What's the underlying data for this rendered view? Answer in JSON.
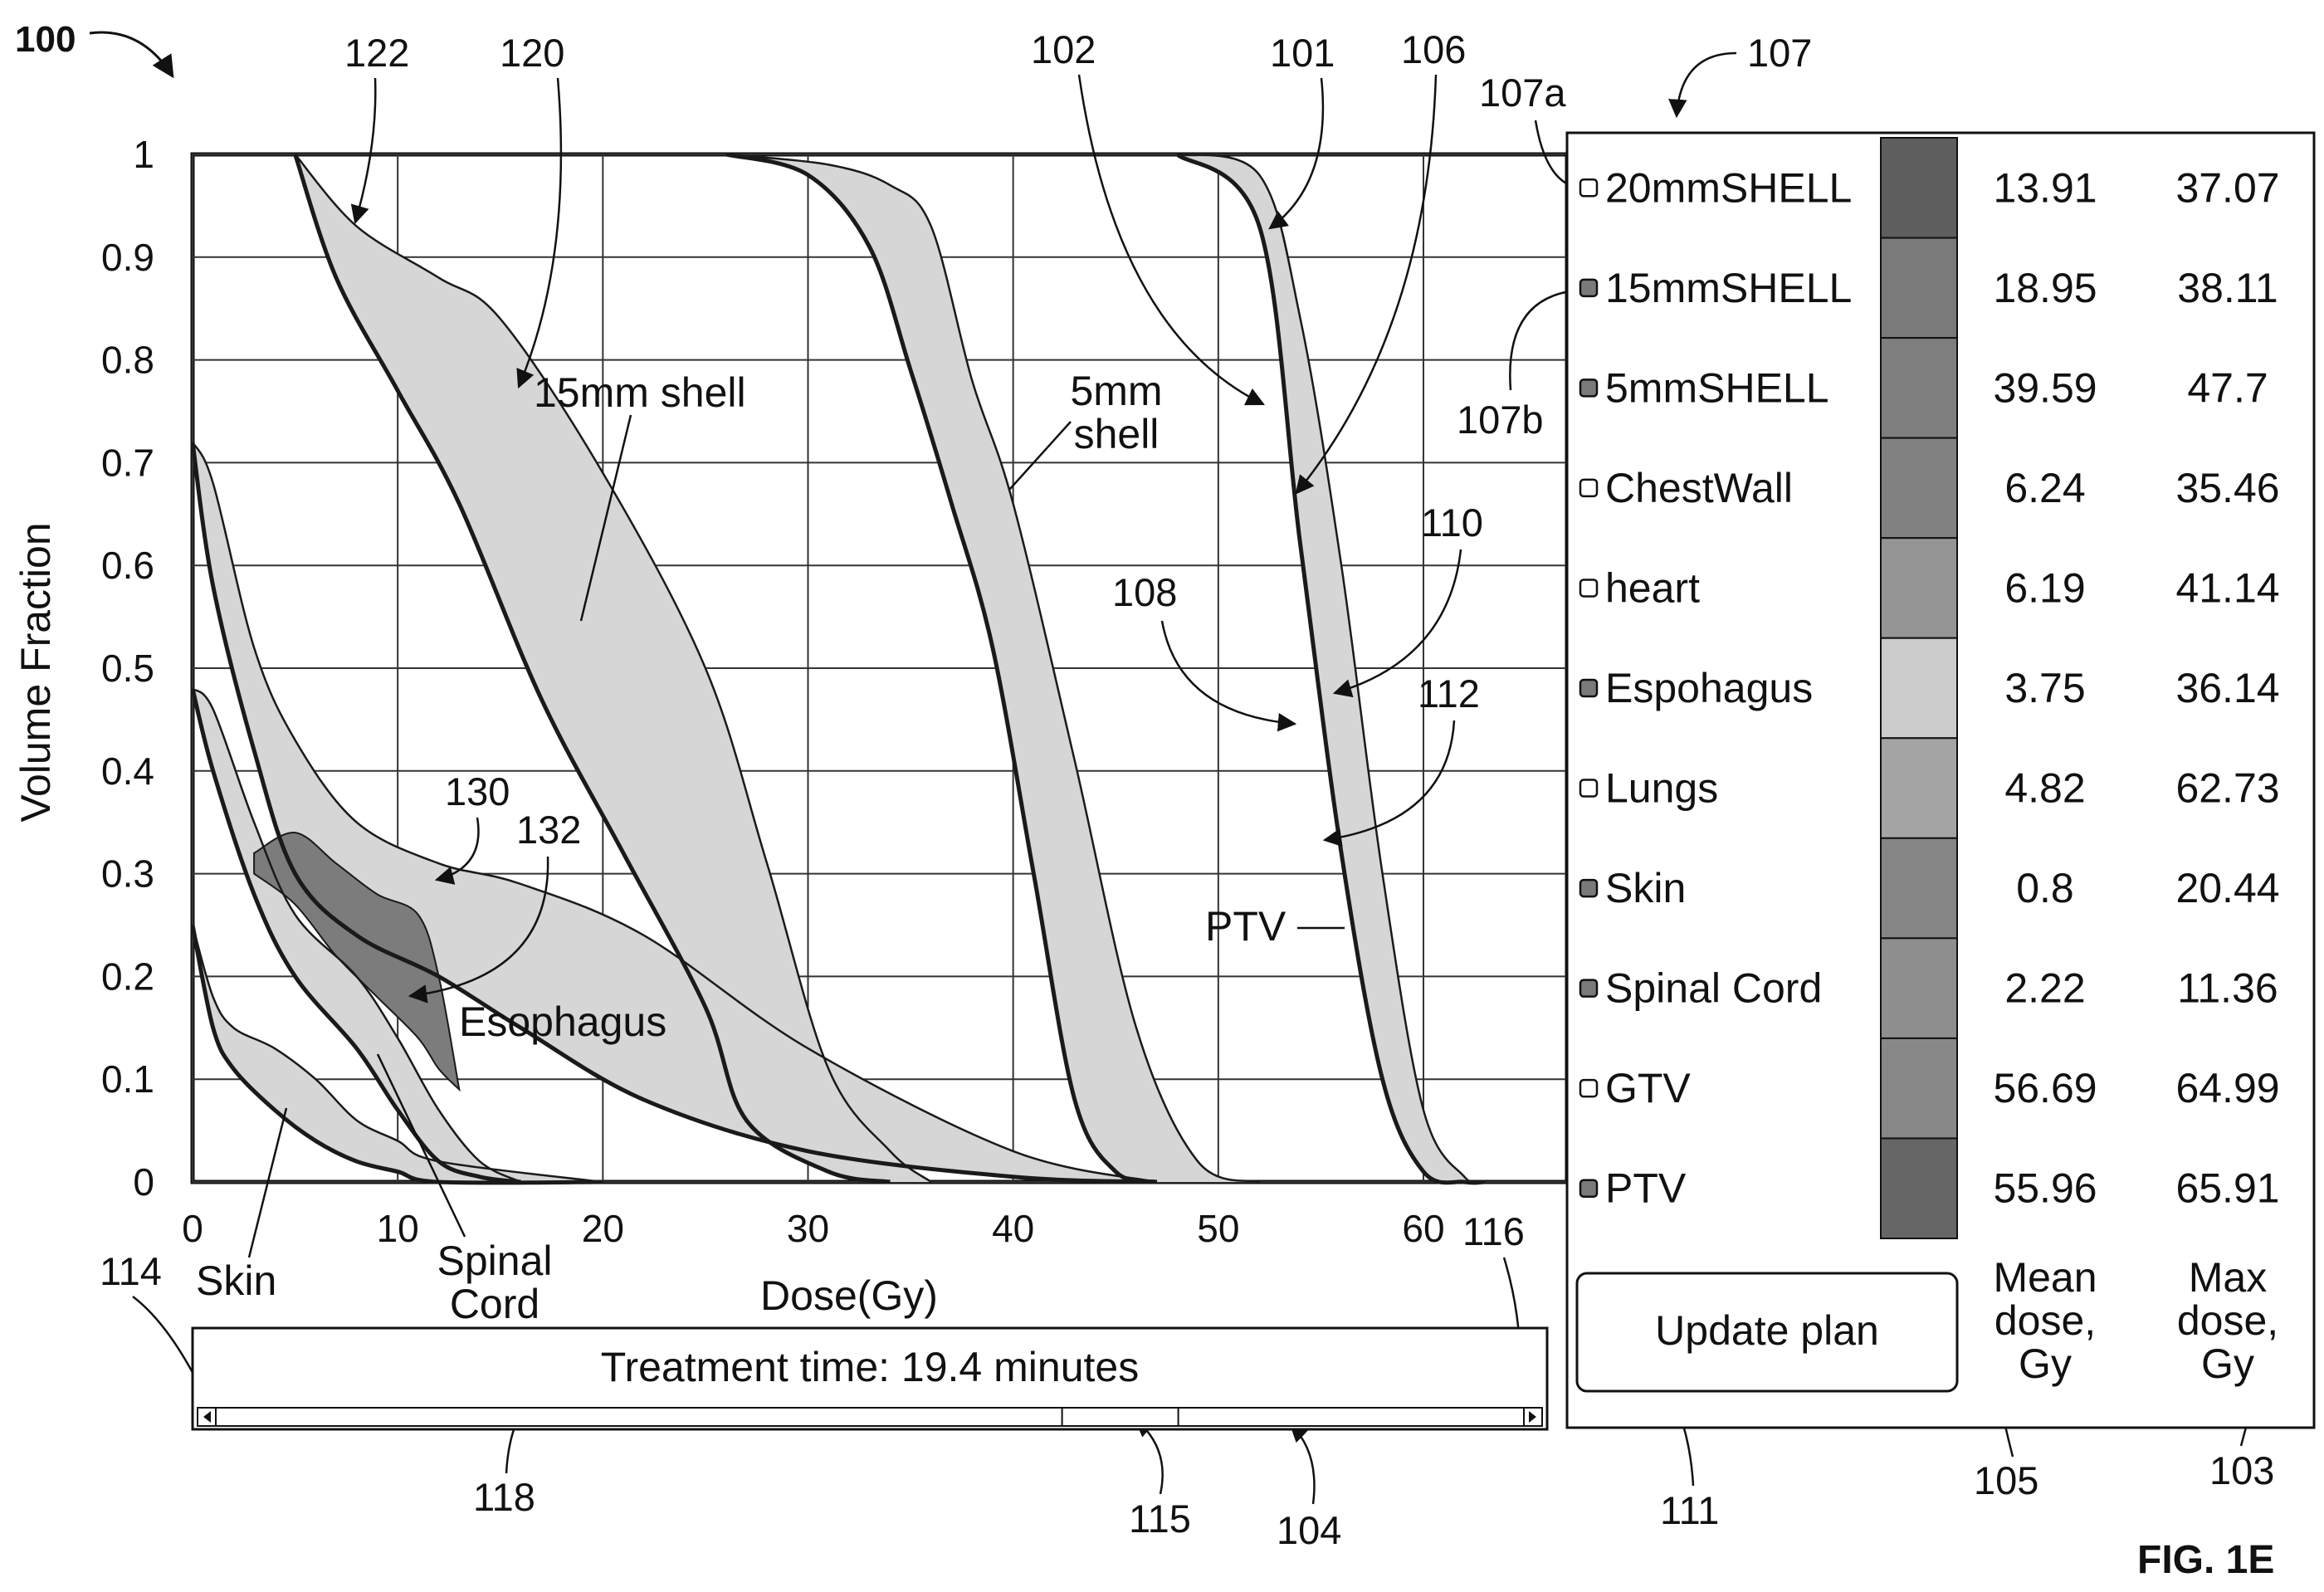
{
  "figure": {
    "number_label": "100",
    "caption": "FIG. 1E",
    "reference_numerals": [
      "122",
      "120",
      "102",
      "101",
      "106",
      "107",
      "107a",
      "107b",
      "110",
      "108",
      "112",
      "130",
      "132",
      "114",
      "116",
      "118",
      "115",
      "104",
      "111",
      "105",
      "103",
      "101"
    ]
  },
  "chart_data": {
    "type": "line",
    "xlabel": "Dose(Gy)",
    "ylabel": "Volume Fraction",
    "xlim": [
      0,
      67
    ],
    "ylim": [
      0,
      1
    ],
    "xticks": [
      "0",
      "10",
      "20",
      "30",
      "40",
      "50",
      "60"
    ],
    "yticks": [
      "0",
      "0.1",
      "0.2",
      "0.3",
      "0.4",
      "0.5",
      "0.6",
      "0.7",
      "0.8",
      "0.9",
      "1"
    ],
    "grid": true,
    "annotations": [
      "15mm shell",
      "5mm shell",
      "PTV",
      "Esophagus",
      "Skin",
      "Spinal Cord"
    ],
    "series": [
      {
        "name": "PTV",
        "bands": true,
        "x": [
          48,
          52,
          54,
          56,
          58,
          60,
          62,
          63
        ],
        "upper": [
          1.0,
          0.98,
          0.84,
          0.6,
          0.3,
          0.07,
          0.005,
          0.0
        ],
        "lower": [
          1.0,
          0.93,
          0.62,
          0.32,
          0.1,
          0.01,
          0.0,
          0.0
        ]
      },
      {
        "name": "5mm shell",
        "bands": true,
        "x": [
          26,
          31,
          34,
          36,
          38,
          40,
          43,
          46,
          49,
          52
        ],
        "upper": [
          1.0,
          0.99,
          0.97,
          0.93,
          0.78,
          0.66,
          0.41,
          0.15,
          0.02,
          0.0
        ],
        "lower": [
          1.0,
          0.98,
          0.91,
          0.79,
          0.66,
          0.52,
          0.3,
          0.08,
          0.01,
          0.0
        ],
        "x_lower": [
          26,
          30,
          33,
          35,
          37,
          39,
          41,
          43,
          45,
          47
        ]
      },
      {
        "name": "15mm shell",
        "bands": true,
        "x": [
          5,
          8,
          12,
          15,
          20,
          25,
          28,
          31,
          34,
          36
        ],
        "upper": [
          1.0,
          0.93,
          0.88,
          0.84,
          0.69,
          0.5,
          0.31,
          0.11,
          0.03,
          0.0
        ],
        "lower": [
          1.0,
          0.88,
          0.77,
          0.66,
          0.47,
          0.32,
          0.17,
          0.06,
          0.01,
          0.0
        ],
        "x_lower": [
          5,
          7,
          10,
          13,
          17,
          21,
          25,
          27,
          31,
          34
        ]
      },
      {
        "name": "Esophagus",
        "bands": true,
        "x": [
          0,
          1,
          3,
          5,
          8,
          12,
          16,
          22,
          30,
          40,
          47
        ],
        "upper": [
          0.72,
          0.68,
          0.52,
          0.43,
          0.35,
          0.31,
          0.29,
          0.24,
          0.13,
          0.03,
          0.0
        ],
        "lower": [
          0.72,
          0.58,
          0.42,
          0.3,
          0.24,
          0.2,
          0.15,
          0.08,
          0.03,
          0.005,
          0.0
        ]
      },
      {
        "name": "Spinal Cord",
        "bands": true,
        "x": [
          0,
          1,
          3,
          5,
          8,
          10,
          12,
          14,
          16
        ],
        "upper": [
          0.48,
          0.46,
          0.35,
          0.26,
          0.2,
          0.14,
          0.07,
          0.02,
          0.0
        ],
        "lower": [
          0.48,
          0.4,
          0.28,
          0.2,
          0.13,
          0.07,
          0.02,
          0.005,
          0.0
        ]
      },
      {
        "name": "Skin",
        "bands": true,
        "x": [
          0,
          1,
          2,
          4,
          6,
          8,
          10,
          12,
          20
        ],
        "upper": [
          0.25,
          0.18,
          0.15,
          0.13,
          0.1,
          0.06,
          0.04,
          0.02,
          0.0
        ],
        "lower": [
          0.25,
          0.15,
          0.11,
          0.07,
          0.04,
          0.02,
          0.01,
          0.0,
          0.0
        ]
      }
    ],
    "esophagus_dark_band": {
      "x": [
        3,
        5,
        7,
        9,
        11,
        12,
        13
      ],
      "upper": [
        0.32,
        0.34,
        0.31,
        0.28,
        0.26,
        0.2,
        0.09
      ],
      "lower": [
        0.3,
        0.27,
        0.22,
        0.18,
        0.14,
        0.11,
        0.09
      ]
    }
  },
  "legend": {
    "rows": [
      {
        "name": "20mmSHELL",
        "mean": "13.91",
        "max": "37.07",
        "checked": false,
        "swatch": "#5e5e5e"
      },
      {
        "name": "15mmSHELL",
        "mean": "18.95",
        "max": "38.11",
        "checked": true,
        "swatch": "#7a7a7a"
      },
      {
        "name": "5mmSHELL",
        "mean": "39.59",
        "max": "47.7",
        "checked": true,
        "swatch": "#7e7e7e"
      },
      {
        "name": "ChestWall",
        "mean": "6.24",
        "max": "35.46",
        "checked": false,
        "swatch": "#818181"
      },
      {
        "name": "heart",
        "mean": "6.19",
        "max": "41.14",
        "checked": false,
        "swatch": "#959595"
      },
      {
        "name": "Espohagus",
        "mean": "3.75",
        "max": "36.14",
        "checked": true,
        "swatch": "#cbcbcb"
      },
      {
        "name": "Lungs",
        "mean": "4.82",
        "max": "62.73",
        "checked": false,
        "swatch": "#a4a4a4"
      },
      {
        "name": "Skin",
        "mean": "0.8",
        "max": "20.44",
        "checked": true,
        "swatch": "#858585"
      },
      {
        "name": "Spinal Cord",
        "mean": "2.22",
        "max": "11.36",
        "checked": true,
        "swatch": "#8e8e8e"
      },
      {
        "name": "GTV",
        "mean": "56.69",
        "max": "64.99",
        "checked": false,
        "swatch": "#888888"
      },
      {
        "name": "PTV",
        "mean": "55.96",
        "max": "65.91",
        "checked": true,
        "swatch": "#666666"
      }
    ],
    "mean_header": [
      "Mean",
      "dose,",
      "Gy"
    ],
    "max_header": [
      "Max",
      "dose,",
      "Gy"
    ]
  },
  "controls": {
    "update_plan_label": "Update plan",
    "treatment_time_label": "Treatment time: 19.4 minutes",
    "slider_position": 0.71
  },
  "colors": {
    "line": "#1a1a1a",
    "band_fill": "#d6d6d6",
    "dark_band_fill": "#7c7c7c",
    "grid": "#333333"
  }
}
